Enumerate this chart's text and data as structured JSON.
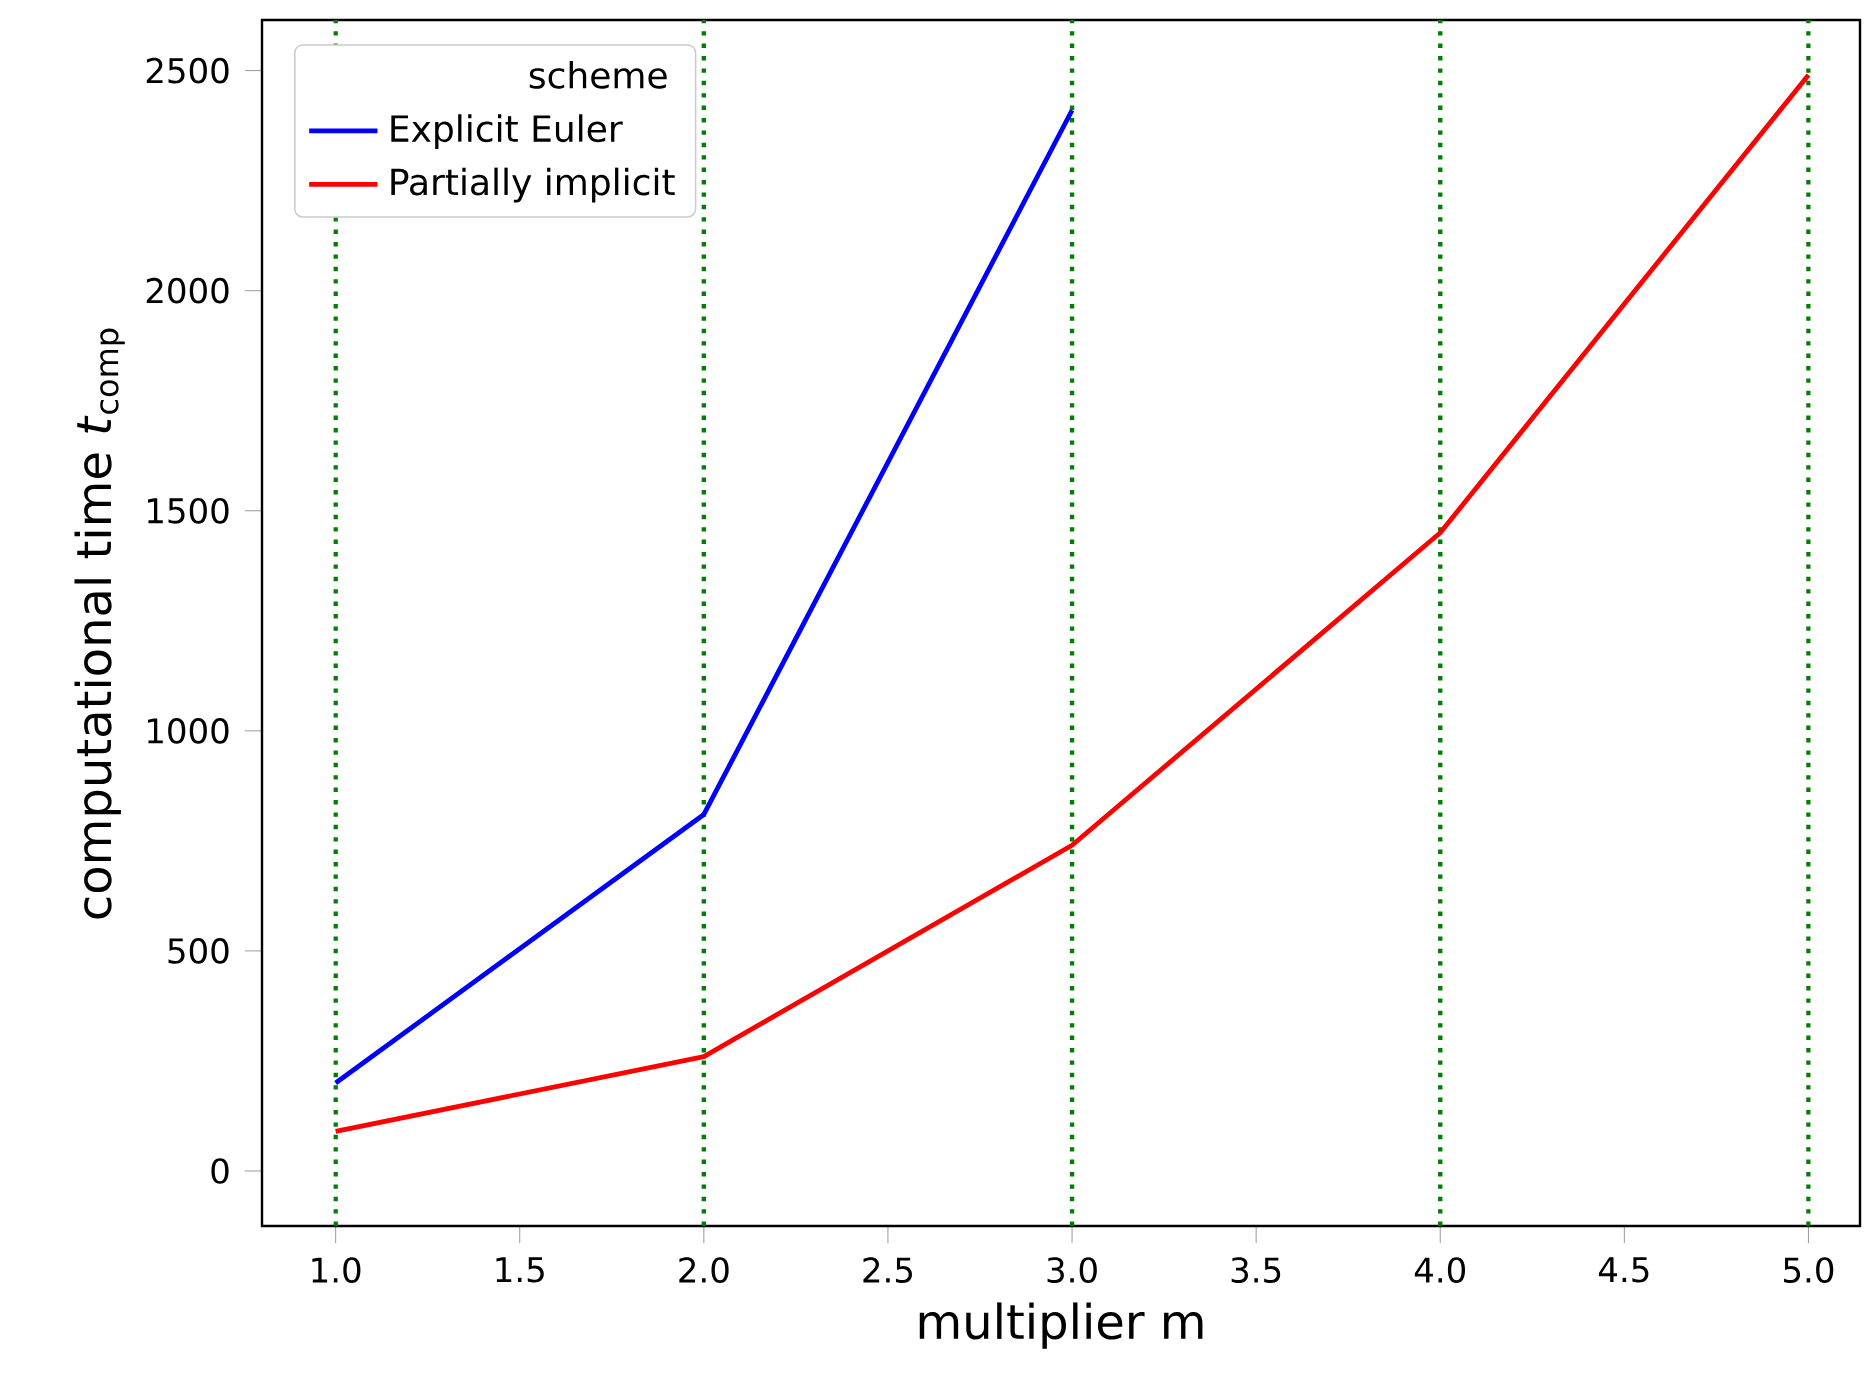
{
  "chart_data": {
    "type": "line",
    "xlabel": "multiplier m",
    "ylabel": "computational time *t*$_{comp}$",
    "legend_title": "scheme",
    "legend": "top left",
    "grid": false,
    "marker": "none",
    "line_style": "solid",
    "x": [
      1,
      2,
      3,
      4,
      5
    ],
    "series": [
      {
        "name": "Explicit Euler",
        "color": "#0000ff",
        "x": [
          1,
          2,
          3
        ],
        "values": [
          200,
          810,
          2410
        ]
      },
      {
        "name": "Partially implicit",
        "color": "#ff0000",
        "values": [
          90,
          260,
          740,
          1450,
          2490
        ]
      }
    ],
    "xlim": [
      0.8,
      5.14
    ],
    "ylim": [
      -125,
      2615
    ],
    "xticks": [
      {
        "value": 1,
        "label": "1.0"
      },
      {
        "value": 1.5,
        "label": "1.5"
      },
      {
        "value": 2,
        "label": "2.0"
      },
      {
        "value": 2.5,
        "label": "2.5"
      },
      {
        "value": 3,
        "label": "3.0"
      },
      {
        "value": 3.5,
        "label": "3.5"
      },
      {
        "value": 4,
        "label": "4.0"
      },
      {
        "value": 4.5,
        "label": "4.5"
      },
      {
        "value": 5,
        "label": "5.0"
      }
    ],
    "yticks": [
      0,
      500,
      1000,
      1500,
      2000,
      2500
    ],
    "ref_lines": [
      {
        "axis": "x",
        "value": 1,
        "color": "#008000",
        "line_style": "dotted"
      },
      {
        "axis": "x",
        "value": 2,
        "color": "#008000",
        "line_style": "dotted"
      },
      {
        "axis": "x",
        "value": 3,
        "color": "#008000",
        "line_style": "dotted"
      },
      {
        "axis": "x",
        "value": 4,
        "color": "#008000",
        "line_style": "dotted"
      },
      {
        "axis": "x",
        "value": 5,
        "color": "#008000",
        "line_style": "dotted"
      }
    ]
  }
}
